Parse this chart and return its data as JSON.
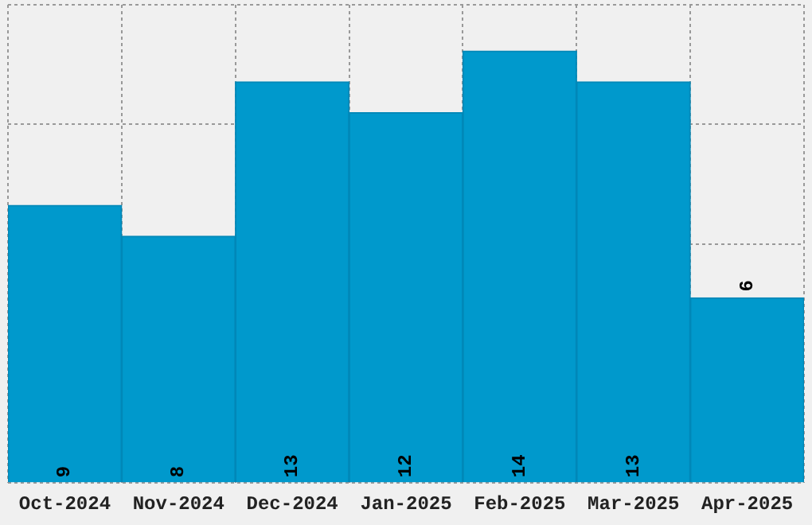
{
  "chart_data": {
    "type": "bar",
    "categories": [
      "Oct-2024",
      "Nov-2024",
      "Dec-2024",
      "Jan-2025",
      "Feb-2025",
      "Mar-2025",
      "Apr-2025"
    ],
    "values": [
      9,
      8,
      13,
      12,
      14,
      13,
      6
    ],
    "color": "#0099cc",
    "ylim": [
      0,
      15.5
    ],
    "grid": true,
    "data_labels": true,
    "tick_labels": "x"
  }
}
